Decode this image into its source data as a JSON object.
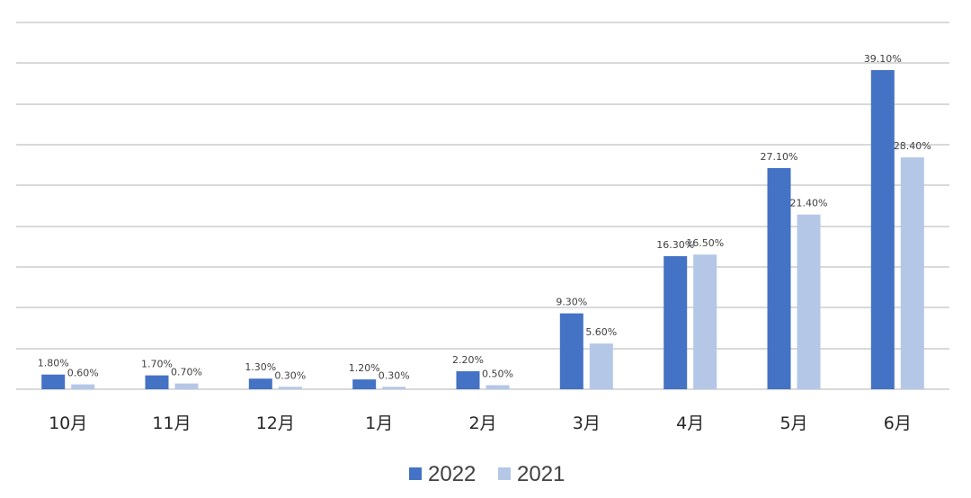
{
  "chart_data": {
    "type": "bar",
    "title": "",
    "xlabel": "",
    "ylabel": "",
    "categories": [
      "10月",
      "11月",
      "12月",
      "1月",
      "2月",
      "3月",
      "4月",
      "5月",
      "6月"
    ],
    "series": [
      {
        "name": "2022",
        "color": "#4472c4",
        "values": [
          1.8,
          1.7,
          1.3,
          1.2,
          2.2,
          9.3,
          16.3,
          27.1,
          39.1
        ],
        "labels": [
          "1.80%",
          "1.70%",
          "1.30%",
          "1.20%",
          "2.20%",
          "9.30%",
          "16.30%",
          "27.10%",
          "39.10%"
        ]
      },
      {
        "name": "2021",
        "color": "#b4c7e7",
        "values": [
          0.6,
          0.7,
          0.3,
          0.3,
          0.5,
          5.6,
          16.5,
          21.4,
          28.4
        ],
        "labels": [
          "0.60%",
          "0.70%",
          "0.30%",
          "0.30%",
          "0.50%",
          "5.60%",
          "16.50%",
          "21.40%",
          "28.40%"
        ]
      }
    ],
    "ylim": [
      0,
      45
    ],
    "grid": true,
    "legend": "bottom-center"
  }
}
